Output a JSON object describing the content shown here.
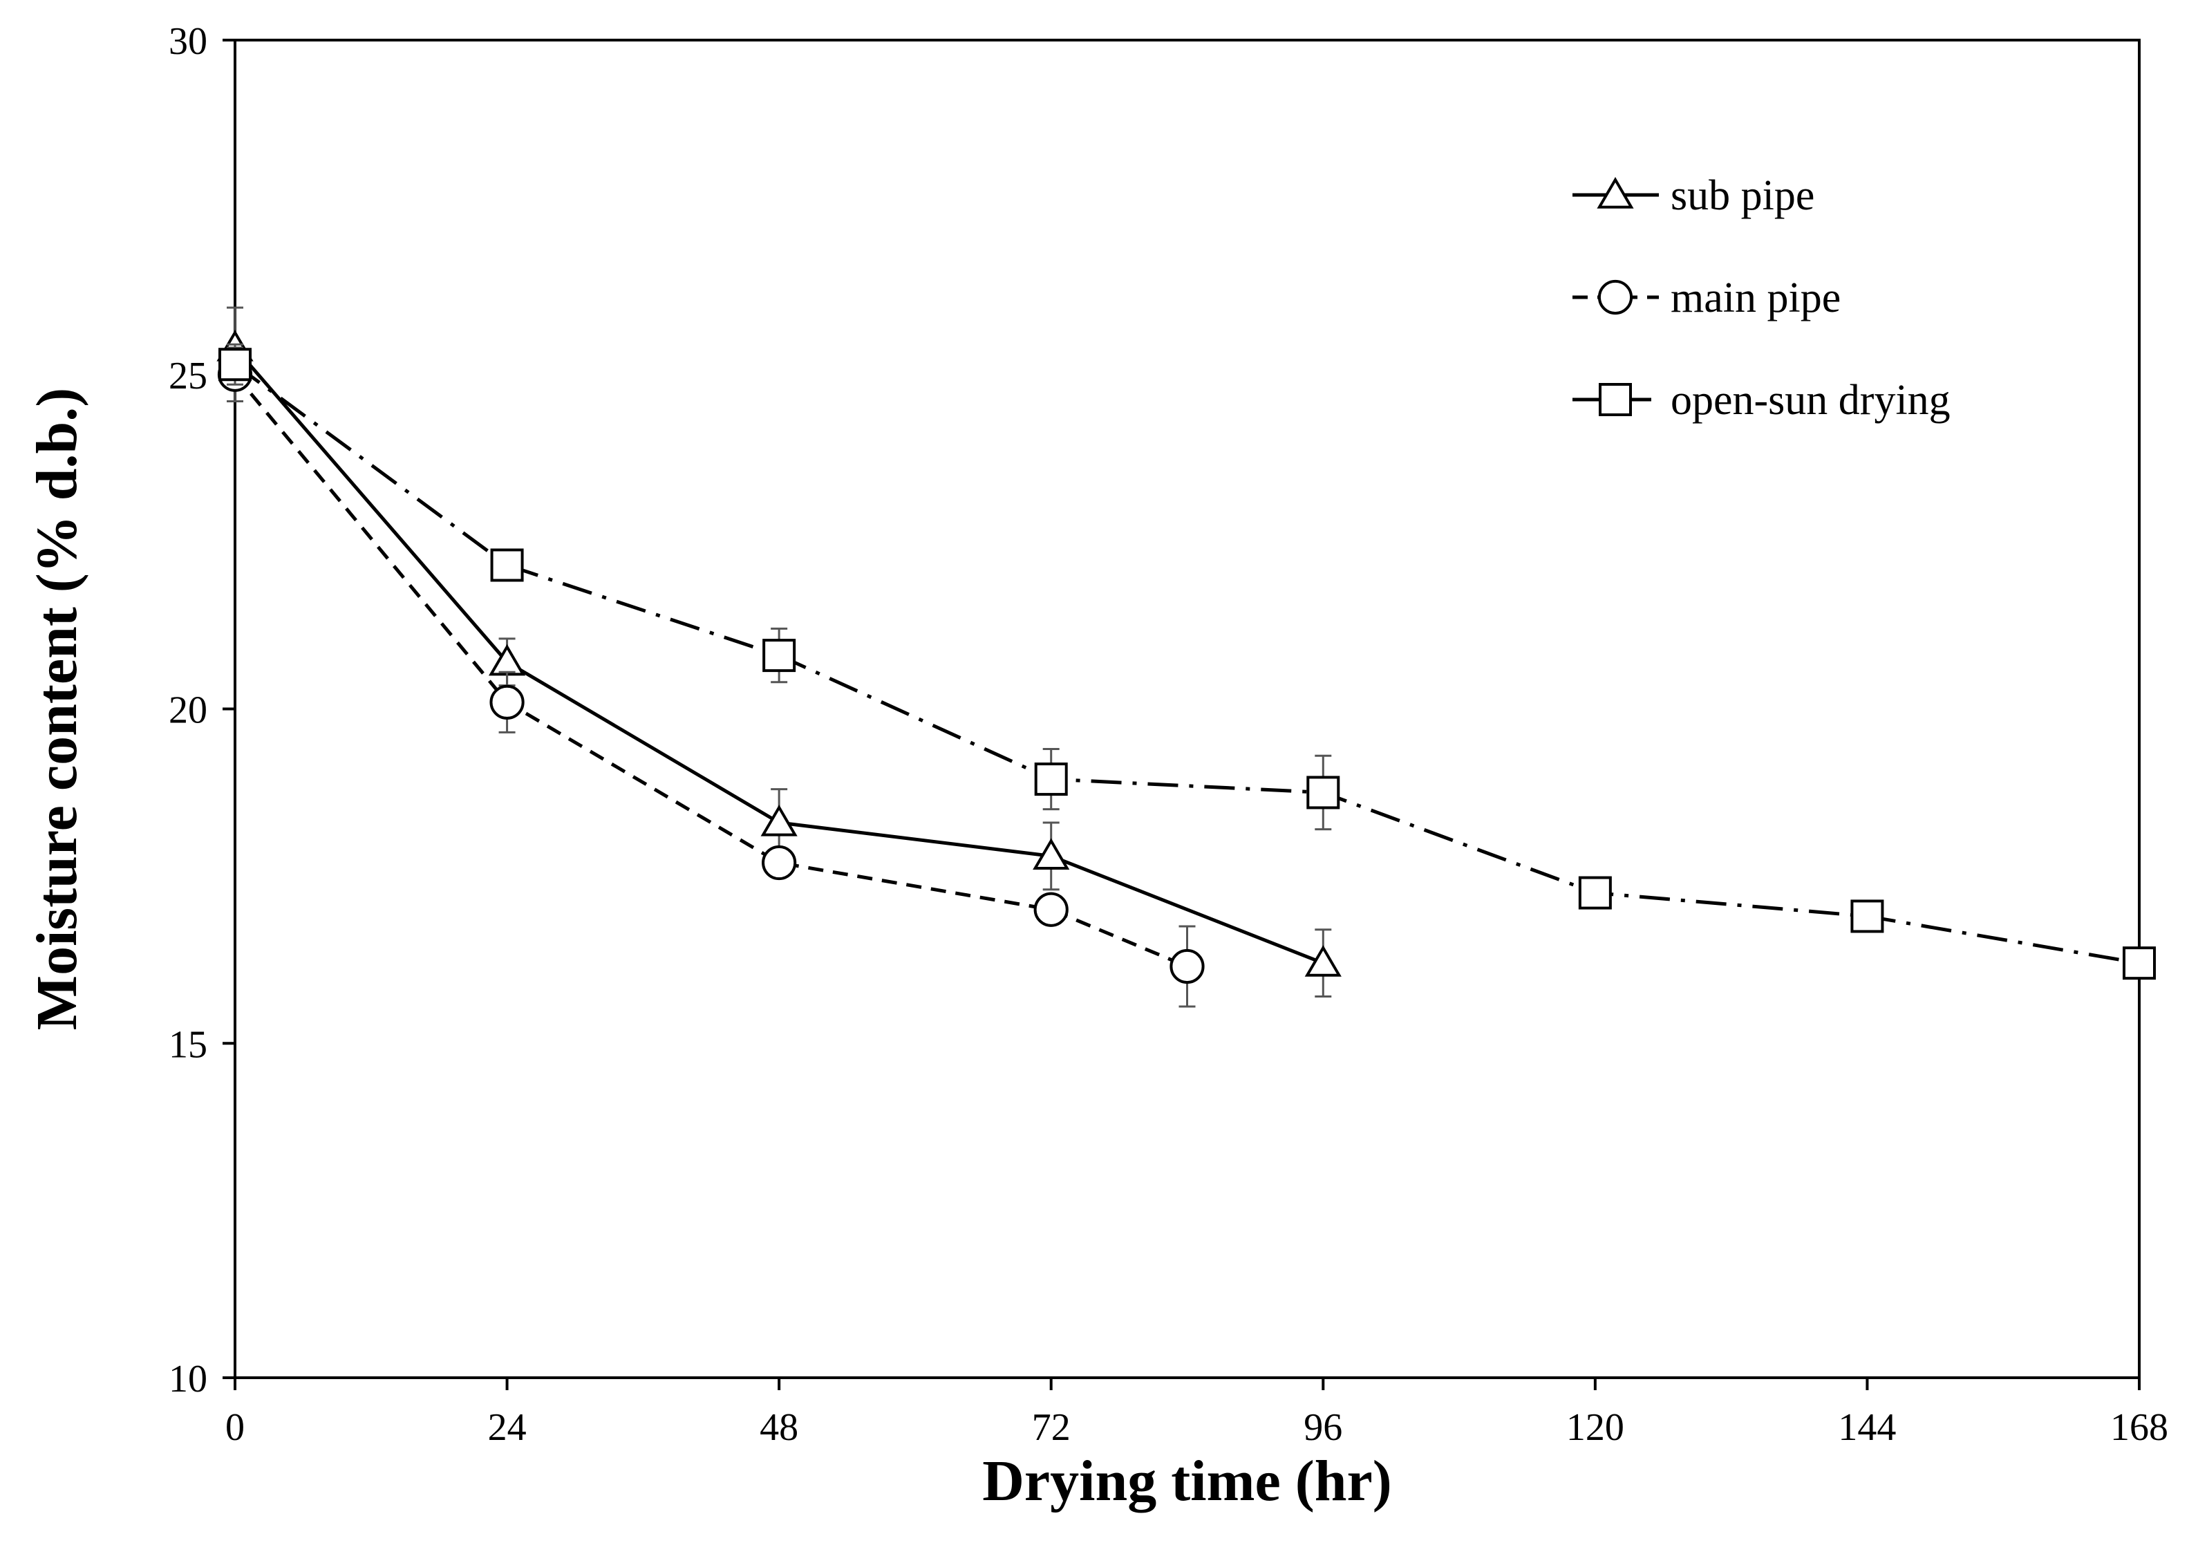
{
  "chart_data": {
    "type": "line",
    "title": "",
    "xlabel": "Drying time (hr)",
    "ylabel": "Moisture content (% d.b.)",
    "xlim": [
      0,
      168
    ],
    "ylim": [
      10,
      30
    ],
    "xticks": [
      0,
      24,
      48,
      72,
      96,
      120,
      144,
      168
    ],
    "yticks": [
      10,
      15,
      20,
      25,
      30
    ],
    "grid": false,
    "legend_position": "top-right",
    "series": [
      {
        "name": "sub pipe",
        "marker": "triangle",
        "line_style": "solid",
        "x": [
          0,
          24,
          48,
          72,
          96
        ],
        "y": [
          25.4,
          20.7,
          18.3,
          17.8,
          16.2
        ],
        "error": [
          0.6,
          0.35,
          0.5,
          0.5,
          0.5
        ]
      },
      {
        "name": "main pipe",
        "marker": "circle",
        "line_style": "dashed",
        "x": [
          0,
          24,
          48,
          72,
          84
        ],
        "y": [
          25.0,
          20.1,
          17.7,
          17.0,
          16.15
        ],
        "error": [
          0.4,
          0.45,
          0.2,
          0.15,
          0.6
        ]
      },
      {
        "name": "open-sun drying",
        "marker": "square",
        "line_style": "dash-dot",
        "x": [
          0,
          24,
          48,
          72,
          96,
          120,
          144,
          168
        ],
        "y": [
          25.15,
          22.15,
          20.8,
          18.95,
          18.75,
          17.25,
          16.9,
          16.2
        ],
        "error": [
          0.3,
          0.15,
          0.4,
          0.45,
          0.55,
          0.2,
          0.2,
          0.15
        ]
      }
    ]
  }
}
